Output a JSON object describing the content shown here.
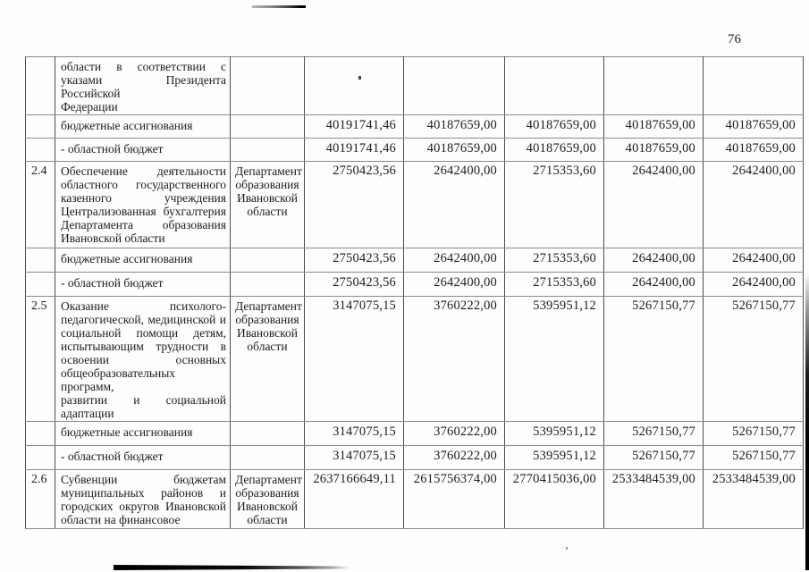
{
  "page": {
    "number": "76"
  },
  "table": {
    "rows": [
      {
        "num": "",
        "desc_lines": [
          "области в соответствии с",
          "указами Президента Российской",
          "Федерации"
        ],
        "dept_lines": [],
        "values": [
          "",
          "",
          "",
          "",
          ""
        ]
      },
      {
        "label": "бюджетные ассигнования",
        "values": [
          "40191741,46",
          "40187659,00",
          "40187659,00",
          "40187659,00",
          "40187659,00"
        ]
      },
      {
        "label": "- областной бюджет",
        "values": [
          "40191741,46",
          "40187659,00",
          "40187659,00",
          "40187659,00",
          "40187659,00"
        ]
      },
      {
        "num": "2.4",
        "desc_lines": [
          "Обеспечение деятельности",
          "областного государственного",
          "казенного учреждения",
          "Централизованная бухгалтерия",
          "Департамента образования",
          "Ивановской области"
        ],
        "dept_lines": [
          "Департамент",
          "образования",
          "Ивановской",
          "области"
        ],
        "values": [
          "2750423,56",
          "2642400,00",
          "2715353,60",
          "2642400,00",
          "2642400,00"
        ]
      },
      {
        "label": "бюджетные ассигнования",
        "values": [
          "2750423,56",
          "2642400,00",
          "2715353,60",
          "2642400,00",
          "2642400,00"
        ]
      },
      {
        "label": "- областной бюджет",
        "values": [
          "2750423,56",
          "2642400,00",
          "2715353,60",
          "2642400,00",
          "2642400,00"
        ]
      },
      {
        "num": "2.5",
        "desc_lines": [
          "Оказание психолого-",
          "педагогической, медицинской и",
          "социальной помощи детям,",
          "испытывающим трудности в",
          "освоении основных",
          "общеобразовательных программ,",
          "развитии и социальной",
          "адаптации"
        ],
        "dept_lines": [
          "Департамент",
          "образования",
          "Ивановской",
          "области"
        ],
        "values": [
          "3147075,15",
          "3760222,00",
          "5395951,12",
          "5267150,77",
          "5267150,77"
        ]
      },
      {
        "label": "бюджетные ассигнования",
        "values": [
          "3147075,15",
          "3760222,00",
          "5395951,12",
          "5267150,77",
          "5267150,77"
        ]
      },
      {
        "label": "- областной бюджет",
        "values": [
          "3147075,15",
          "3760222,00",
          "5395951,12",
          "5267150,77",
          "5267150,77"
        ]
      },
      {
        "num": "2.6",
        "desc_lines": [
          "Субвенции бюджетам",
          "муниципальных районов и",
          "городских округов Ивановской",
          "области на финансовое"
        ],
        "dept_lines": [
          "Департамент",
          "образования",
          "Ивановской",
          "области"
        ],
        "values": [
          "2637166649,11",
          "2615756374,00",
          "2770415036,00",
          "2533484539,00",
          "2533484539,00"
        ]
      }
    ]
  }
}
